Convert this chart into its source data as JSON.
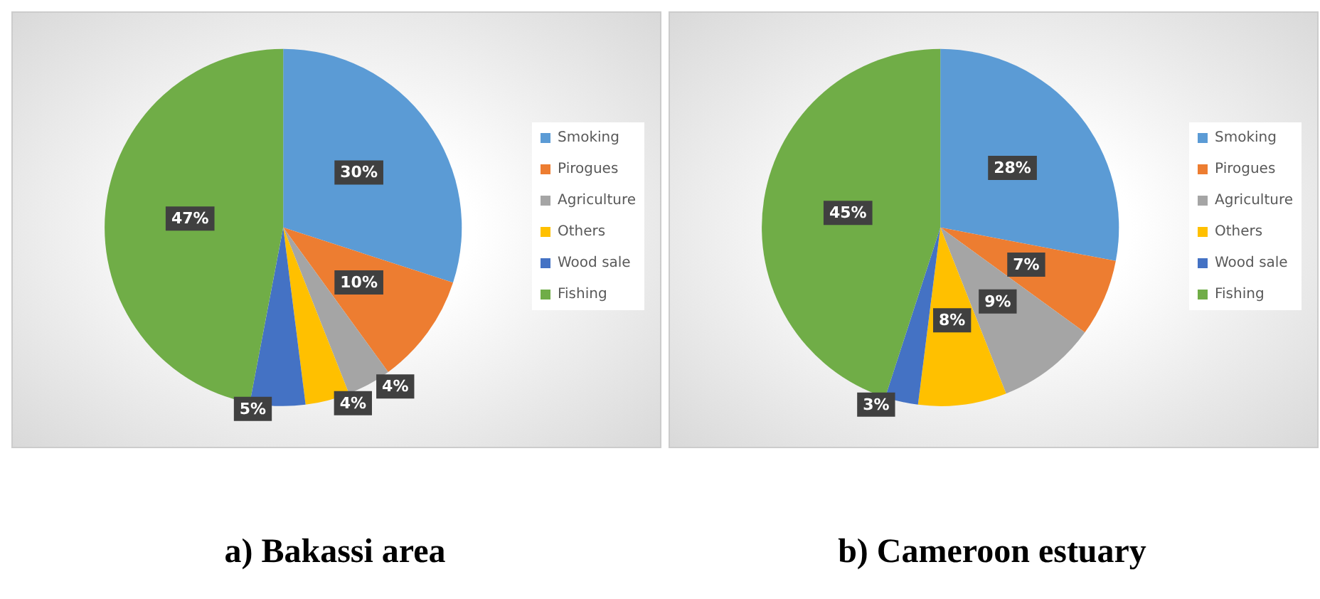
{
  "chart_data": [
    {
      "type": "pie",
      "title": "a) Bakassi area",
      "categories": [
        "Smoking",
        "Pirogues",
        "Agriculture",
        "Others",
        "Wood sale",
        "Fishing"
      ],
      "values": [
        30,
        10,
        4,
        4,
        5,
        47
      ],
      "value_labels": [
        "30%",
        "10%",
        "4%",
        "4%",
        "5%",
        "47%"
      ],
      "colors": [
        "#5b9bd5",
        "#ed7d31",
        "#a5a5a5",
        "#ffc000",
        "#4472c4",
        "#70ad47"
      ],
      "legend": "right"
    },
    {
      "type": "pie",
      "title": "b) Cameroon estuary",
      "categories": [
        "Smoking",
        "Pirogues",
        "Agriculture",
        "Others",
        "Wood sale",
        "Fishing"
      ],
      "values": [
        28,
        7,
        9,
        8,
        3,
        45
      ],
      "value_labels": [
        "28%",
        "7%",
        "9%",
        "8%",
        "3%",
        "45%"
      ],
      "colors": [
        "#5b9bd5",
        "#ed7d31",
        "#a5a5a5",
        "#ffc000",
        "#4472c4",
        "#70ad47"
      ],
      "legend": "right"
    }
  ]
}
